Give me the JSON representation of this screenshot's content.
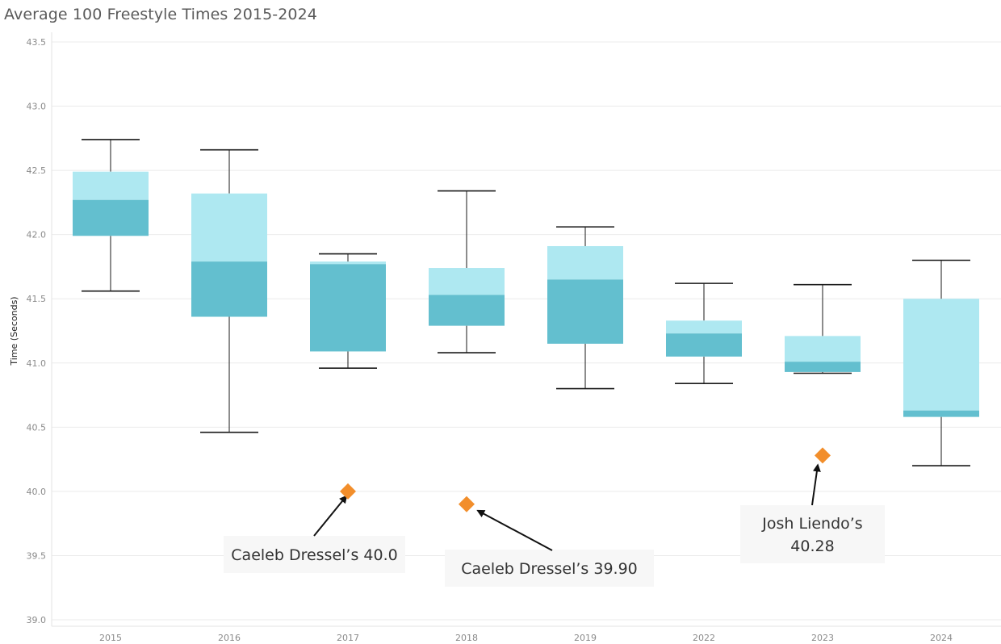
{
  "chart_data": {
    "type": "box",
    "title": "Average 100 Freestyle Times 2015-2024",
    "ylabel": "Time (Seconds)",
    "xlabel": "",
    "ylim": [
      39.0,
      43.5
    ],
    "yticks": [
      "39.0",
      "39.5",
      "40.0",
      "40.5",
      "41.0",
      "41.5",
      "42.0",
      "42.5",
      "43.0",
      "43.5"
    ],
    "yticks_values": [
      39.0,
      39.5,
      40.0,
      40.5,
      41.0,
      41.5,
      42.0,
      42.5,
      43.0,
      43.5
    ],
    "grid": true,
    "categories": [
      "2015",
      "2016",
      "2017",
      "2018",
      "2019",
      "2022",
      "2023",
      "2024"
    ],
    "boxes": [
      {
        "category": "2015",
        "whisker_low": 41.56,
        "q1": 41.99,
        "median": 42.27,
        "q3": 42.49,
        "whisker_high": 42.74
      },
      {
        "category": "2016",
        "whisker_low": 40.46,
        "q1": 41.36,
        "median": 41.79,
        "q3": 42.32,
        "whisker_high": 42.66
      },
      {
        "category": "2017",
        "whisker_low": 40.96,
        "q1": 41.09,
        "median": 41.77,
        "q3": 41.79,
        "whisker_high": 41.85
      },
      {
        "category": "2018",
        "whisker_low": 41.08,
        "q1": 41.29,
        "median": 41.53,
        "q3": 41.74,
        "whisker_high": 42.34
      },
      {
        "category": "2019",
        "whisker_low": 40.8,
        "q1": 41.15,
        "median": 41.65,
        "q3": 41.91,
        "whisker_high": 42.06
      },
      {
        "category": "2022",
        "whisker_low": 40.84,
        "q1": 41.05,
        "median": 41.23,
        "q3": 41.33,
        "whisker_high": 41.62
      },
      {
        "category": "2023",
        "whisker_low": 40.92,
        "q1": 40.93,
        "median": 41.01,
        "q3": 41.21,
        "whisker_high": 41.61
      },
      {
        "category": "2024",
        "whisker_low": 40.2,
        "q1": 40.58,
        "median": 40.63,
        "q3": 41.5,
        "whisker_high": 41.8
      }
    ],
    "highlights": [
      {
        "category": "2017",
        "value": 40.0,
        "label": "Caeleb Dressel’s 40.0"
      },
      {
        "category": "2018",
        "value": 39.9,
        "label": "Caeleb Dressel’s 39.90"
      },
      {
        "category": "2023",
        "value": 40.28,
        "label_lines": [
          "Josh Liendo’s",
          "40.28"
        ]
      }
    ],
    "colors": {
      "box_lower": "#63bfcf",
      "box_upper": "#aee8f1",
      "whisker": "#1a1a1a",
      "highlight": "#f28e2b",
      "grid": "#ebebeb",
      "annotation_bg": "#f7f7f7",
      "title": "#5a5a5a"
    }
  }
}
